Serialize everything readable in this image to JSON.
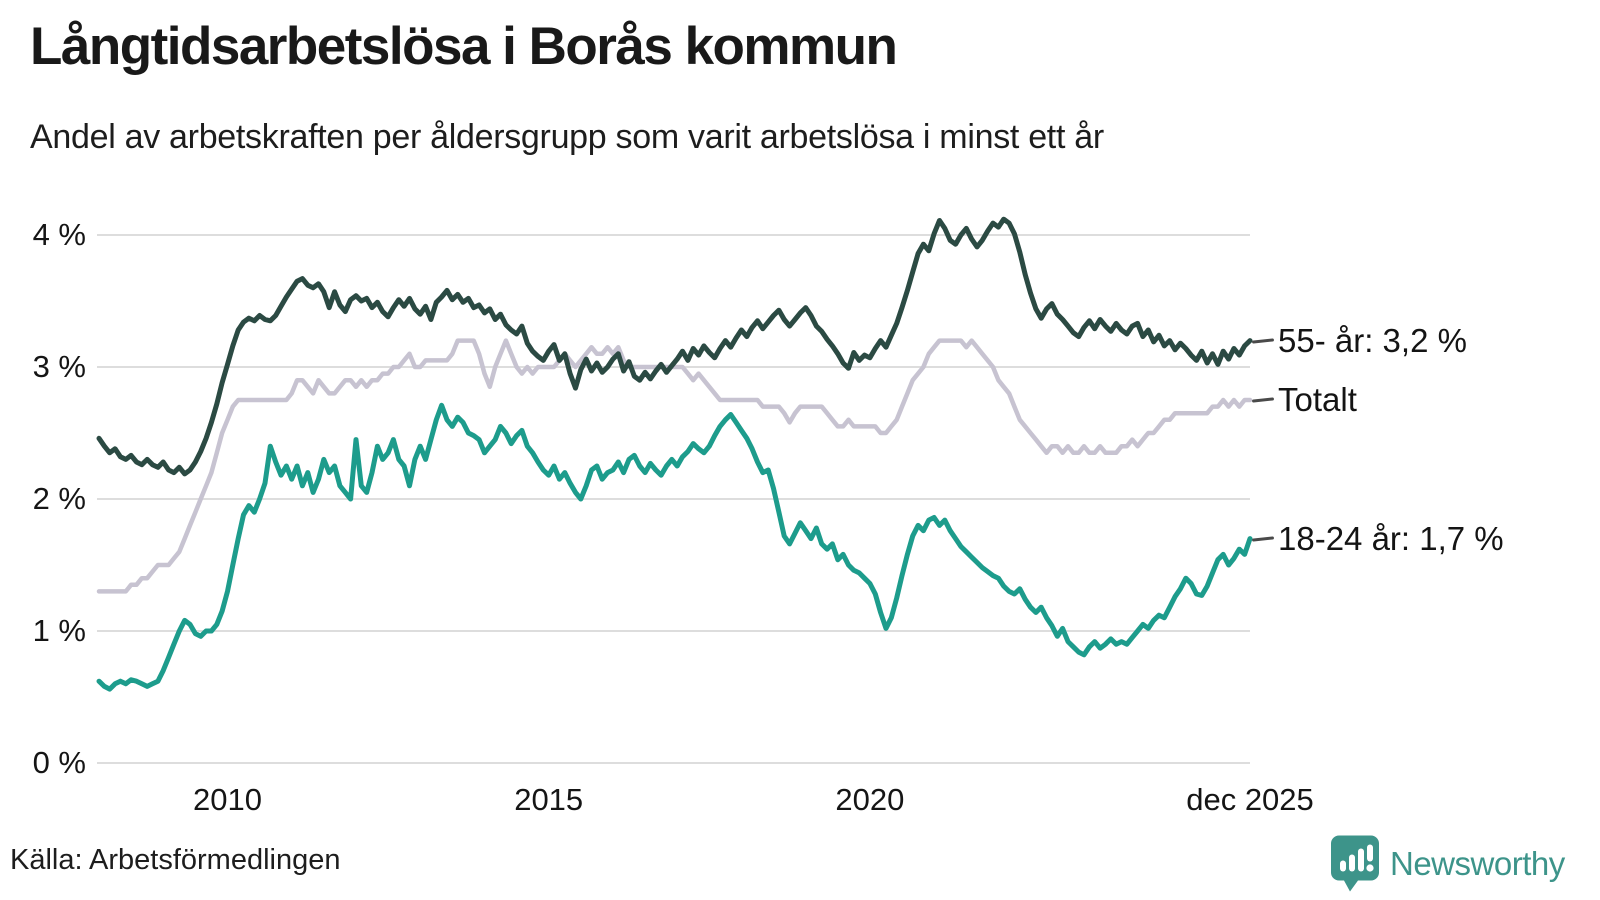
{
  "header": {
    "title": "Långtidsarbetslösa i Borås kommun",
    "subtitle": "Andel av arbetskraften per åldersgrupp som varit arbetslösa i minst ett år"
  },
  "footer": {
    "source": "Källa: Arbetsförmedlingen",
    "brand": "Newsworthy"
  },
  "colors": {
    "series_55": "#2b4a43",
    "series_total": "#c7c3d1",
    "series_18_24": "#1d9c8c",
    "gridline": "#dddddd",
    "text": "#1a1a1a",
    "annotation_dash": "#4a4a4a",
    "brand_teal": "#3d948a"
  },
  "chart_data": {
    "type": "line",
    "title": "Långtidsarbetslösa i Borås kommun",
    "subtitle": "Andel av arbetskraften per åldersgrupp som varit arbetslösa i minst ett år",
    "unit": "% av arbetskraften",
    "grid": "horizontal",
    "legend_position": "line-end-labels-right",
    "x_axis": {
      "type": "time-monthly",
      "range": [
        2008.0,
        2025.9167
      ],
      "tick_labels": [
        {
          "label": "2010",
          "year": 2010.0
        },
        {
          "label": "2015",
          "year": 2015.0
        },
        {
          "label": "2020",
          "year": 2020.0
        },
        {
          "label": "dec 2025",
          "year": 2025.9167
        }
      ]
    },
    "y_axis": {
      "range": [
        0,
        4.35
      ],
      "ticks": [
        {
          "v": 0,
          "label": "0 %"
        },
        {
          "v": 1,
          "label": "1 %"
        },
        {
          "v": 2,
          "label": "2 %"
        },
        {
          "v": 3,
          "label": "3 %"
        },
        {
          "v": 4,
          "label": "4 %"
        }
      ]
    },
    "series": [
      {
        "name": "Totalt",
        "end_label": "Totalt",
        "color": "#c7c3d1",
        "stroke_width": 4.5,
        "start_year": 2008,
        "interval_months": 1,
        "values": [
          1.3,
          1.3,
          1.3,
          1.3,
          1.3,
          1.3,
          1.35,
          1.35,
          1.4,
          1.4,
          1.45,
          1.5,
          1.5,
          1.5,
          1.55,
          1.6,
          1.7,
          1.8,
          1.9,
          2.0,
          2.1,
          2.2,
          2.35,
          2.5,
          2.6,
          2.7,
          2.75,
          2.75,
          2.75,
          2.75,
          2.75,
          2.75,
          2.75,
          2.75,
          2.75,
          2.75,
          2.8,
          2.9,
          2.9,
          2.85,
          2.8,
          2.9,
          2.85,
          2.8,
          2.8,
          2.85,
          2.9,
          2.9,
          2.85,
          2.9,
          2.85,
          2.9,
          2.9,
          2.95,
          2.95,
          3.0,
          3.0,
          3.05,
          3.1,
          3.0,
          3.0,
          3.05,
          3.05,
          3.05,
          3.05,
          3.05,
          3.1,
          3.2,
          3.2,
          3.2,
          3.2,
          3.1,
          2.95,
          2.85,
          3.0,
          3.1,
          3.2,
          3.1,
          3.0,
          2.95,
          3.0,
          2.95,
          3.0,
          3.0,
          3.0,
          3.0,
          3.05,
          3.1,
          3.05,
          3.0,
          3.05,
          3.1,
          3.15,
          3.1,
          3.1,
          3.15,
          3.1,
          3.15,
          3.05,
          3.0,
          3.0,
          3.0,
          3.0,
          3.0,
          3.0,
          3.0,
          3.0,
          3.0,
          3.0,
          3.0,
          2.95,
          2.9,
          2.95,
          2.9,
          2.85,
          2.8,
          2.75,
          2.75,
          2.75,
          2.75,
          2.75,
          2.75,
          2.75,
          2.75,
          2.7,
          2.7,
          2.7,
          2.7,
          2.65,
          2.58,
          2.65,
          2.7,
          2.7,
          2.7,
          2.7,
          2.7,
          2.65,
          2.6,
          2.55,
          2.55,
          2.6,
          2.55,
          2.55,
          2.55,
          2.55,
          2.55,
          2.5,
          2.5,
          2.55,
          2.6,
          2.7,
          2.8,
          2.9,
          2.95,
          3.0,
          3.1,
          3.15,
          3.2,
          3.2,
          3.2,
          3.2,
          3.2,
          3.15,
          3.2,
          3.15,
          3.1,
          3.05,
          3.0,
          2.9,
          2.85,
          2.8,
          2.7,
          2.6,
          2.55,
          2.5,
          2.45,
          2.4,
          2.35,
          2.4,
          2.4,
          2.35,
          2.4,
          2.35,
          2.35,
          2.4,
          2.35,
          2.35,
          2.4,
          2.35,
          2.35,
          2.35,
          2.4,
          2.4,
          2.45,
          2.4,
          2.45,
          2.5,
          2.5,
          2.55,
          2.6,
          2.6,
          2.65,
          2.65,
          2.65,
          2.65,
          2.65,
          2.65,
          2.65,
          2.7,
          2.7,
          2.75,
          2.7,
          2.75,
          2.7,
          2.75,
          2.75
        ]
      },
      {
        "name": "55- år",
        "end_label": "55- år: 3,2 %",
        "color": "#2b4a43",
        "stroke_width": 5,
        "start_year": 2008,
        "interval_months": 1,
        "values": [
          2.46,
          2.4,
          2.35,
          2.38,
          2.32,
          2.3,
          2.33,
          2.28,
          2.26,
          2.3,
          2.26,
          2.24,
          2.28,
          2.22,
          2.2,
          2.24,
          2.19,
          2.22,
          2.28,
          2.36,
          2.46,
          2.58,
          2.72,
          2.88,
          3.02,
          3.16,
          3.28,
          3.34,
          3.37,
          3.35,
          3.39,
          3.36,
          3.35,
          3.39,
          3.46,
          3.53,
          3.59,
          3.65,
          3.67,
          3.62,
          3.6,
          3.63,
          3.57,
          3.45,
          3.57,
          3.47,
          3.42,
          3.51,
          3.54,
          3.5,
          3.52,
          3.45,
          3.49,
          3.42,
          3.38,
          3.45,
          3.51,
          3.46,
          3.52,
          3.44,
          3.4,
          3.46,
          3.36,
          3.49,
          3.53,
          3.58,
          3.51,
          3.55,
          3.49,
          3.52,
          3.45,
          3.47,
          3.41,
          3.44,
          3.36,
          3.4,
          3.32,
          3.28,
          3.25,
          3.31,
          3.18,
          3.12,
          3.08,
          3.05,
          3.12,
          3.17,
          3.05,
          3.1,
          2.95,
          2.84,
          2.98,
          3.06,
          2.97,
          3.03,
          2.96,
          3.0,
          3.06,
          3.1,
          2.97,
          3.04,
          2.93,
          2.9,
          2.96,
          2.91,
          2.97,
          3.02,
          2.96,
          3.01,
          3.06,
          3.12,
          3.05,
          3.14,
          3.09,
          3.16,
          3.11,
          3.07,
          3.14,
          3.2,
          3.15,
          3.22,
          3.28,
          3.23,
          3.3,
          3.35,
          3.29,
          3.34,
          3.39,
          3.43,
          3.36,
          3.31,
          3.36,
          3.41,
          3.45,
          3.39,
          3.31,
          3.27,
          3.21,
          3.16,
          3.1,
          3.03,
          2.99,
          3.11,
          3.05,
          3.09,
          3.07,
          3.14,
          3.2,
          3.15,
          3.24,
          3.33,
          3.45,
          3.58,
          3.72,
          3.86,
          3.93,
          3.88,
          4.01,
          4.11,
          4.05,
          3.96,
          3.93,
          4.0,
          4.05,
          3.97,
          3.91,
          3.96,
          4.03,
          4.09,
          4.06,
          4.12,
          4.09,
          4.01,
          3.87,
          3.7,
          3.56,
          3.44,
          3.37,
          3.44,
          3.48,
          3.4,
          3.36,
          3.31,
          3.26,
          3.23,
          3.3,
          3.35,
          3.29,
          3.36,
          3.31,
          3.27,
          3.33,
          3.28,
          3.25,
          3.31,
          3.33,
          3.23,
          3.28,
          3.19,
          3.24,
          3.16,
          3.2,
          3.13,
          3.18,
          3.14,
          3.09,
          3.05,
          3.12,
          3.03,
          3.1,
          3.02,
          3.12,
          3.06,
          3.14,
          3.09,
          3.16,
          3.2
        ]
      },
      {
        "name": "18-24 år",
        "end_label": "18-24 år: 1,7 %",
        "color": "#1d9c8c",
        "stroke_width": 5,
        "start_year": 2008,
        "interval_months": 1,
        "values": [
          0.62,
          0.58,
          0.56,
          0.6,
          0.62,
          0.6,
          0.63,
          0.62,
          0.6,
          0.58,
          0.6,
          0.62,
          0.7,
          0.8,
          0.9,
          1.0,
          1.08,
          1.05,
          0.98,
          0.96,
          1.0,
          1.0,
          1.05,
          1.15,
          1.3,
          1.5,
          1.7,
          1.88,
          1.95,
          1.9,
          2.0,
          2.12,
          2.4,
          2.28,
          2.18,
          2.25,
          2.15,
          2.25,
          2.1,
          2.2,
          2.05,
          2.15,
          2.3,
          2.2,
          2.25,
          2.1,
          2.05,
          2.0,
          2.45,
          2.1,
          2.05,
          2.2,
          2.4,
          2.3,
          2.35,
          2.45,
          2.3,
          2.25,
          2.1,
          2.3,
          2.4,
          2.3,
          2.45,
          2.6,
          2.71,
          2.6,
          2.55,
          2.62,
          2.58,
          2.5,
          2.48,
          2.45,
          2.35,
          2.4,
          2.45,
          2.55,
          2.5,
          2.42,
          2.48,
          2.52,
          2.4,
          2.35,
          2.28,
          2.22,
          2.18,
          2.25,
          2.15,
          2.2,
          2.12,
          2.05,
          2.0,
          2.1,
          2.22,
          2.25,
          2.15,
          2.2,
          2.22,
          2.28,
          2.2,
          2.3,
          2.33,
          2.25,
          2.2,
          2.27,
          2.22,
          2.18,
          2.25,
          2.3,
          2.25,
          2.32,
          2.36,
          2.42,
          2.38,
          2.35,
          2.4,
          2.48,
          2.55,
          2.6,
          2.64,
          2.58,
          2.52,
          2.46,
          2.38,
          2.28,
          2.2,
          2.22,
          2.08,
          1.9,
          1.72,
          1.66,
          1.74,
          1.82,
          1.76,
          1.7,
          1.78,
          1.66,
          1.62,
          1.66,
          1.54,
          1.58,
          1.5,
          1.46,
          1.44,
          1.4,
          1.36,
          1.28,
          1.14,
          1.02,
          1.1,
          1.25,
          1.42,
          1.58,
          1.72,
          1.8,
          1.76,
          1.84,
          1.86,
          1.8,
          1.84,
          1.76,
          1.7,
          1.64,
          1.6,
          1.56,
          1.52,
          1.48,
          1.45,
          1.42,
          1.4,
          1.34,
          1.3,
          1.28,
          1.32,
          1.24,
          1.18,
          1.14,
          1.18,
          1.1,
          1.04,
          0.96,
          1.02,
          0.92,
          0.88,
          0.84,
          0.82,
          0.88,
          0.92,
          0.87,
          0.9,
          0.94,
          0.9,
          0.92,
          0.9,
          0.95,
          1.0,
          1.05,
          1.02,
          1.08,
          1.12,
          1.1,
          1.18,
          1.26,
          1.32,
          1.4,
          1.36,
          1.28,
          1.27,
          1.34,
          1.44,
          1.54,
          1.58,
          1.5,
          1.55,
          1.62,
          1.58,
          1.7
        ]
      }
    ]
  }
}
